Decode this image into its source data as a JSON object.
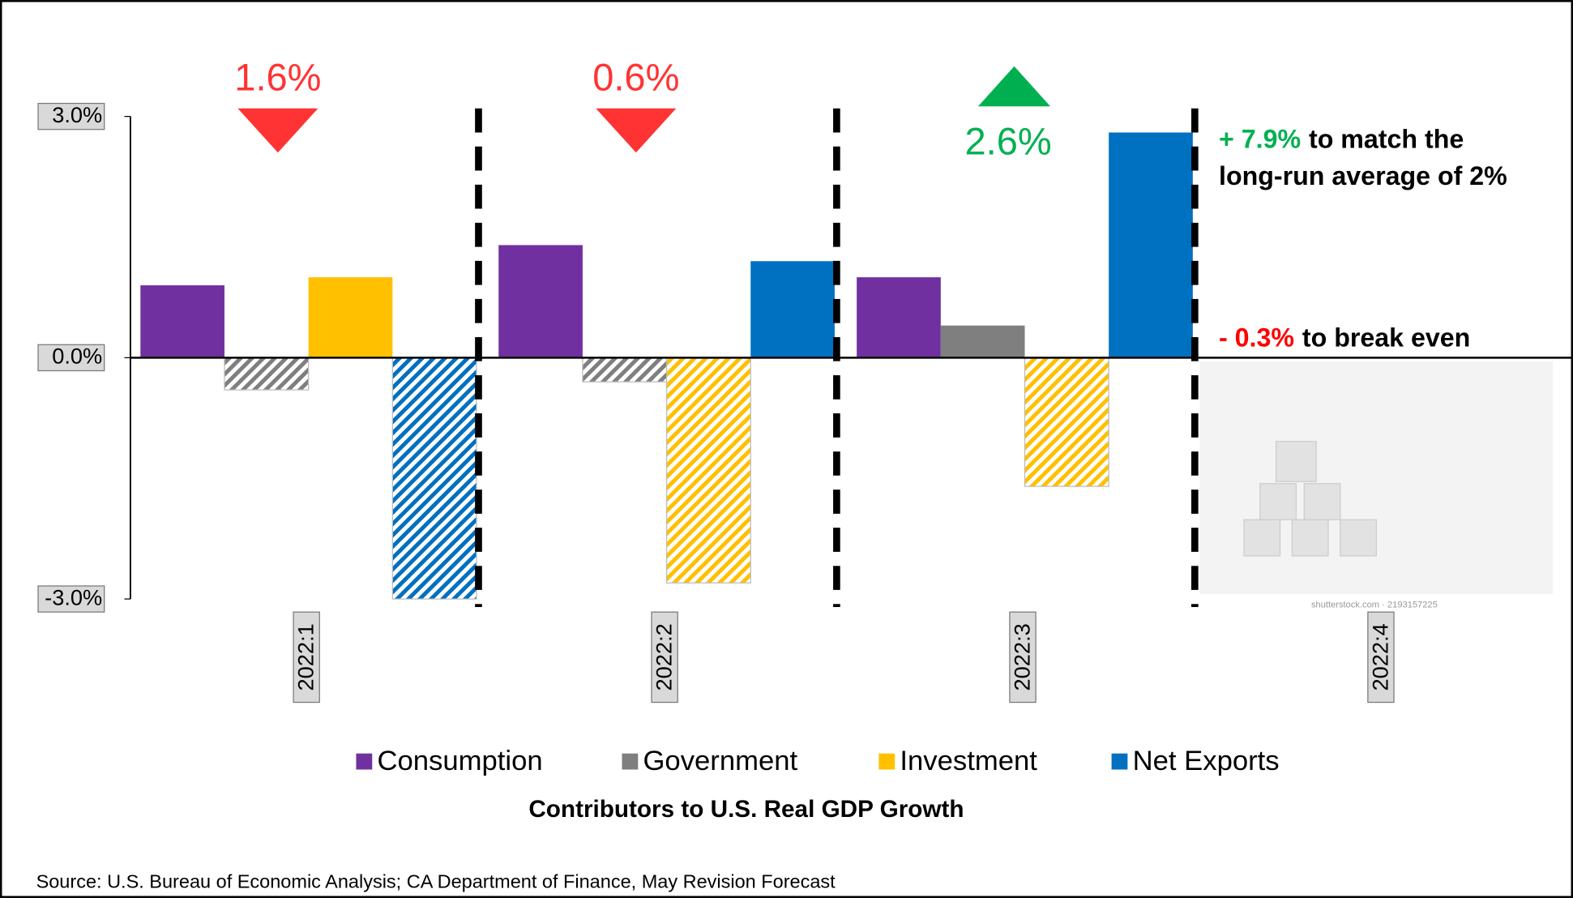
{
  "chart_data": {
    "type": "bar",
    "title": "Contributors to U.S. Real GDP Growth",
    "source": "Source: U.S. Bureau of Economic Analysis; CA Department of Finance, May Revision Forecast",
    "categories": [
      "2022:1",
      "2022:2",
      "2022:3",
      "2022:4"
    ],
    "series": [
      {
        "name": "Consumption",
        "color": "#7030a0",
        "values": [
          0.9,
          1.4,
          1.0,
          null
        ]
      },
      {
        "name": "Government",
        "color": "#7f7f7f",
        "values": [
          -0.4,
          -0.3,
          0.4,
          null
        ]
      },
      {
        "name": "Investment",
        "color": "#ffc000",
        "values": [
          1.0,
          -2.8,
          -1.6,
          null
        ]
      },
      {
        "name": "Net Exports",
        "color": "#0070c0",
        "values": [
          -3.0,
          1.2,
          2.8,
          null
        ]
      }
    ],
    "ylim": [
      -3,
      3
    ],
    "yticks": [
      {
        "value": -3,
        "label": "-3.0%"
      },
      {
        "value": 0,
        "label": "0.0%"
      },
      {
        "value": 3,
        "label": "3.0%"
      }
    ],
    "negative_hatched": true,
    "annotations": [
      {
        "text": "1.6%",
        "direction": "down",
        "color": "#ff3333"
      },
      {
        "text": "0.6%",
        "direction": "down",
        "color": "#ff3333"
      },
      {
        "text": "2.6%",
        "direction": "up",
        "color": "#00b050"
      }
    ],
    "notes": [
      {
        "highlight": "+ 7.9%",
        "highlight_color": "#00b050",
        "lines": [
          "to match the",
          "long-run average of 2%"
        ]
      },
      {
        "highlight": "- 0.3%",
        "highlight_color": "#ff0000",
        "lines": [
          "to break even"
        ]
      }
    ],
    "watermark": "shutterstock.com · 2193157225"
  }
}
